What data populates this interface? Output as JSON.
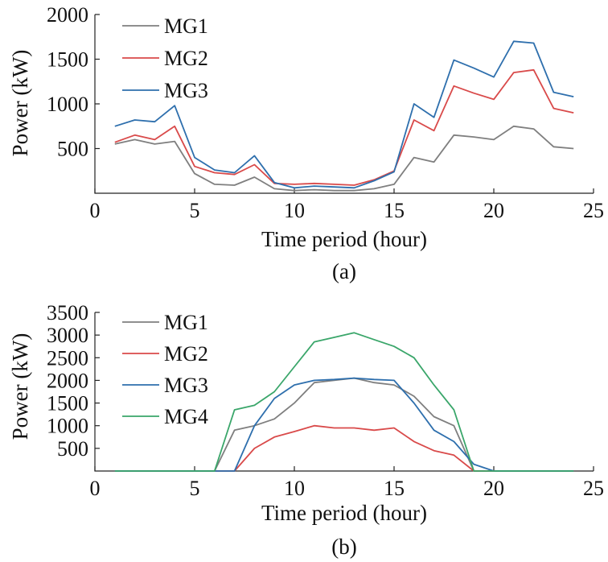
{
  "chart_data": [
    {
      "type": "line",
      "xlabel": "Time period (hour)",
      "ylabel": "Power (kW)",
      "caption": "(a)",
      "xlim": [
        0,
        25
      ],
      "ylim": [
        0,
        2000
      ],
      "xticks": [
        0,
        5,
        10,
        15,
        20,
        25
      ],
      "yticks": [
        500,
        1000,
        1500,
        2000
      ],
      "grid": false,
      "legend_position": "top-left",
      "x": [
        1,
        2,
        3,
        4,
        5,
        6,
        7,
        8,
        9,
        10,
        11,
        12,
        13,
        14,
        15,
        16,
        17,
        18,
        19,
        20,
        21,
        22,
        23,
        24
      ],
      "series": [
        {
          "name": "MG1",
          "color": "#7f7f7f",
          "values": [
            550,
            600,
            550,
            580,
            220,
            100,
            90,
            180,
            50,
            30,
            40,
            30,
            30,
            50,
            100,
            400,
            350,
            650,
            630,
            600,
            750,
            720,
            520,
            500
          ]
        },
        {
          "name": "MG2",
          "color": "#d94a4a",
          "values": [
            570,
            650,
            600,
            750,
            300,
            230,
            210,
            320,
            110,
            100,
            110,
            100,
            90,
            150,
            250,
            820,
            700,
            1200,
            1120,
            1050,
            1350,
            1380,
            950,
            900
          ]
        },
        {
          "name": "MG3",
          "color": "#2e6fad",
          "values": [
            750,
            820,
            800,
            980,
            400,
            260,
            230,
            420,
            120,
            60,
            80,
            70,
            60,
            140,
            240,
            1000,
            850,
            1490,
            1400,
            1300,
            1700,
            1680,
            1130,
            1080
          ]
        }
      ]
    },
    {
      "type": "line",
      "xlabel": "Time period (hour)",
      "ylabel": "Power (kW)",
      "caption": "(b)",
      "xlim": [
        0,
        25
      ],
      "ylim": [
        0,
        3500
      ],
      "xticks": [
        0,
        5,
        10,
        15,
        20,
        25
      ],
      "yticks": [
        500,
        1000,
        1500,
        2000,
        2500,
        3000,
        3500
      ],
      "grid": false,
      "legend_position": "top-left",
      "x": [
        1,
        2,
        3,
        4,
        5,
        6,
        7,
        8,
        9,
        10,
        11,
        12,
        13,
        14,
        15,
        16,
        17,
        18,
        19,
        20,
        21,
        22,
        23,
        24
      ],
      "series": [
        {
          "name": "MG1",
          "color": "#7f7f7f",
          "values": [
            0,
            0,
            0,
            0,
            0,
            0,
            900,
            1000,
            1150,
            1500,
            1950,
            2000,
            2050,
            1950,
            1900,
            1650,
            1200,
            1000,
            0,
            0,
            0,
            0,
            0,
            0
          ]
        },
        {
          "name": "MG2",
          "color": "#d94a4a",
          "values": [
            0,
            0,
            0,
            0,
            0,
            0,
            0,
            500,
            750,
            870,
            1000,
            950,
            950,
            900,
            950,
            650,
            450,
            350,
            0,
            0,
            0,
            0,
            0,
            0
          ]
        },
        {
          "name": "MG3",
          "color": "#2e6fad",
          "values": [
            0,
            0,
            0,
            0,
            0,
            0,
            0,
            1000,
            1600,
            1900,
            2000,
            2020,
            2050,
            2020,
            2000,
            1500,
            900,
            650,
            150,
            0,
            0,
            0,
            0,
            0
          ]
        },
        {
          "name": "MG4",
          "color": "#3aa66a",
          "values": [
            0,
            0,
            0,
            0,
            0,
            0,
            1350,
            1450,
            1750,
            2300,
            2850,
            2950,
            3050,
            2900,
            2750,
            2500,
            1900,
            1350,
            0,
            0,
            0,
            0,
            0,
            0
          ]
        }
      ]
    }
  ]
}
